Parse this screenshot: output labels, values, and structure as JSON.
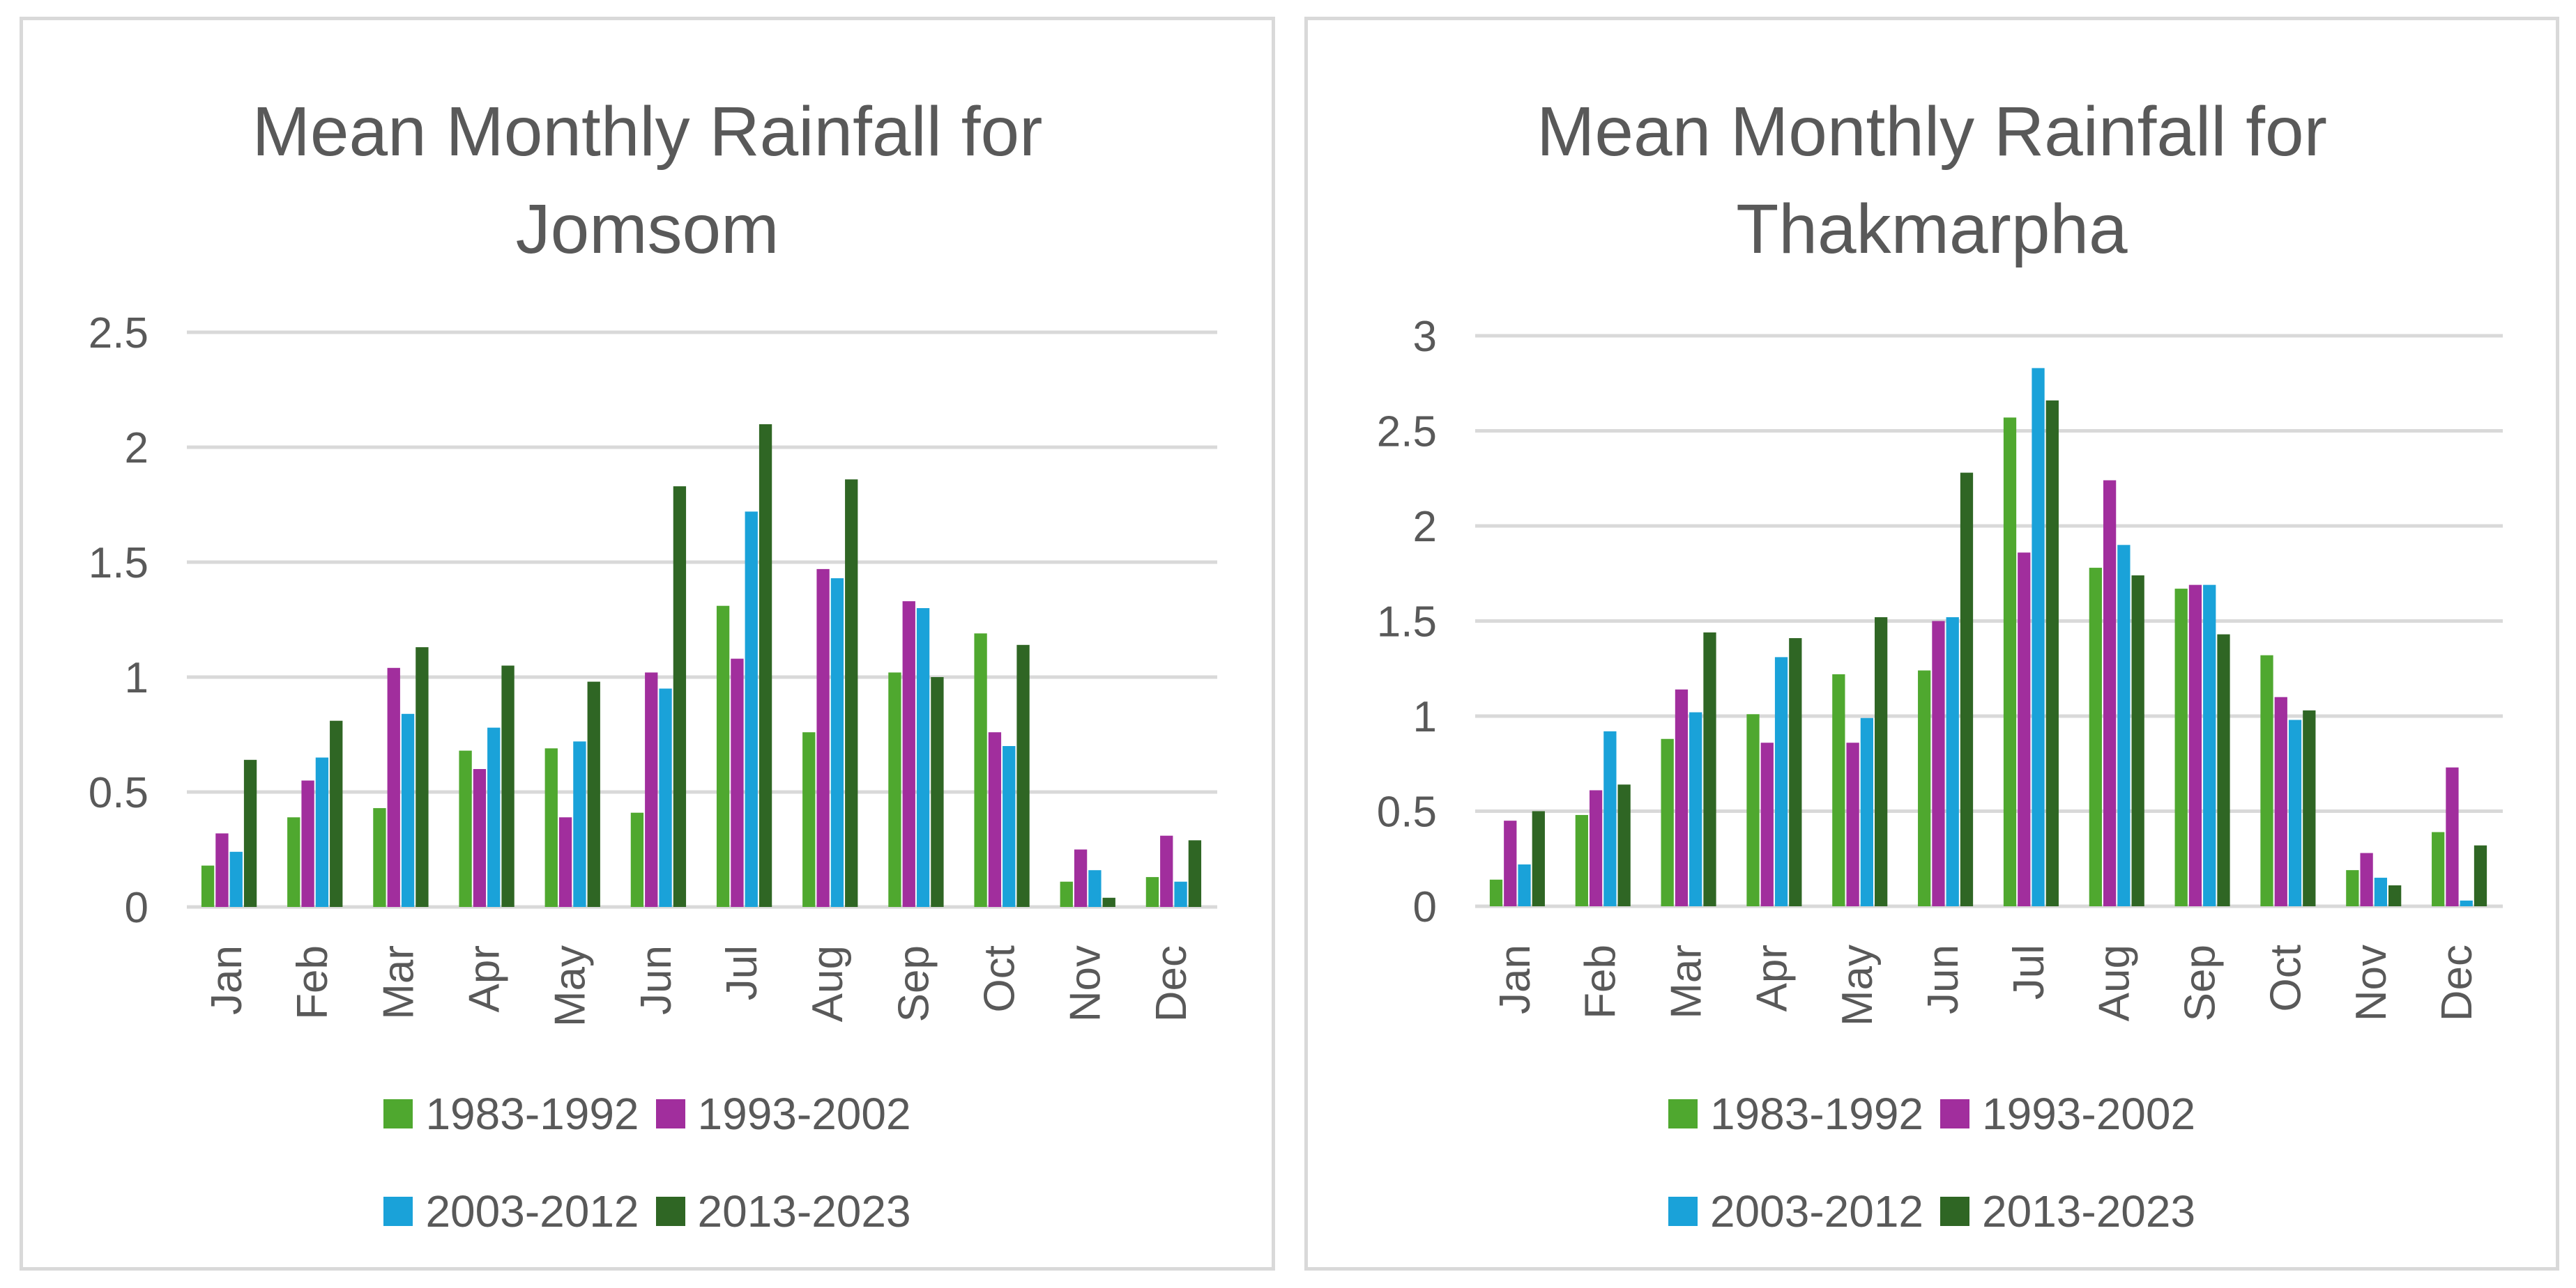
{
  "chart_data": [
    {
      "type": "bar",
      "title": "Mean Monthly Rainfall for Jomsom",
      "title_lines": [
        "Mean Monthly Rainfall for",
        "Jomsom"
      ],
      "categories": [
        "Jan",
        "Feb",
        "Mar",
        "Apr",
        "May",
        "Jun",
        "Jul",
        "Aug",
        "Sep",
        "Oct",
        "Nov",
        "Dec"
      ],
      "ylim": [
        0,
        2.5
      ],
      "yticks": [
        "0",
        "0.5",
        "1",
        "1.5",
        "2",
        "2.5"
      ],
      "ytick_values": [
        0,
        0.5,
        1,
        1.5,
        2,
        2.5
      ],
      "grid": true,
      "legend_position": "bottom",
      "series": [
        {
          "name": "1983-1992",
          "color": "#4fa82f",
          "values": [
            0.18,
            0.39,
            0.43,
            0.68,
            0.69,
            0.41,
            1.31,
            0.76,
            1.02,
            1.19,
            0.11,
            0.13
          ]
        },
        {
          "name": "1993-2002",
          "color": "#a12e9d",
          "values": [
            0.32,
            0.55,
            1.04,
            0.6,
            0.39,
            1.02,
            1.08,
            1.47,
            1.33,
            0.76,
            0.25,
            0.31
          ]
        },
        {
          "name": "2003-2012",
          "color": "#1aa2d9",
          "values": [
            0.24,
            0.65,
            0.84,
            0.78,
            0.72,
            0.95,
            1.72,
            1.43,
            1.3,
            0.7,
            0.16,
            0.11
          ]
        },
        {
          "name": "2013-2023",
          "color": "#2f6624",
          "values": [
            0.64,
            0.81,
            1.13,
            1.05,
            0.98,
            1.83,
            2.1,
            1.86,
            1.0,
            1.14,
            0.04,
            0.29
          ]
        }
      ]
    },
    {
      "type": "bar",
      "title": "Mean Monthly Rainfall for Thakmarpha",
      "title_lines": [
        "Mean Monthly Rainfall for",
        "Thakmarpha"
      ],
      "categories": [
        "Jan",
        "Feb",
        "Mar",
        "Apr",
        "May",
        "Jun",
        "Jul",
        "Aug",
        "Sep",
        "Oct",
        "Nov",
        "Dec"
      ],
      "ylim": [
        0,
        3
      ],
      "yticks": [
        "0",
        "0.5",
        "1",
        "1.5",
        "2",
        "2.5",
        "3"
      ],
      "ytick_values": [
        0,
        0.5,
        1,
        1.5,
        2,
        2.5,
        3
      ],
      "grid": true,
      "legend_position": "bottom",
      "series": [
        {
          "name": "1983-1992",
          "color": "#4fa82f",
          "values": [
            0.14,
            0.48,
            0.88,
            1.01,
            1.22,
            1.24,
            2.57,
            1.78,
            1.67,
            1.32,
            0.19,
            0.39
          ]
        },
        {
          "name": "1993-2002",
          "color": "#a12e9d",
          "values": [
            0.45,
            0.61,
            1.14,
            0.86,
            0.86,
            1.5,
            1.86,
            2.24,
            1.69,
            1.1,
            0.28,
            0.73
          ]
        },
        {
          "name": "2003-2012",
          "color": "#1aa2d9",
          "values": [
            0.22,
            0.92,
            1.02,
            1.31,
            0.99,
            1.52,
            2.83,
            1.9,
            1.69,
            0.98,
            0.15,
            0.03
          ]
        },
        {
          "name": "2013-2023",
          "color": "#2f6624",
          "values": [
            0.5,
            0.64,
            1.44,
            1.41,
            1.52,
            2.28,
            2.66,
            1.74,
            1.43,
            1.03,
            0.11,
            0.32
          ]
        }
      ]
    }
  ]
}
